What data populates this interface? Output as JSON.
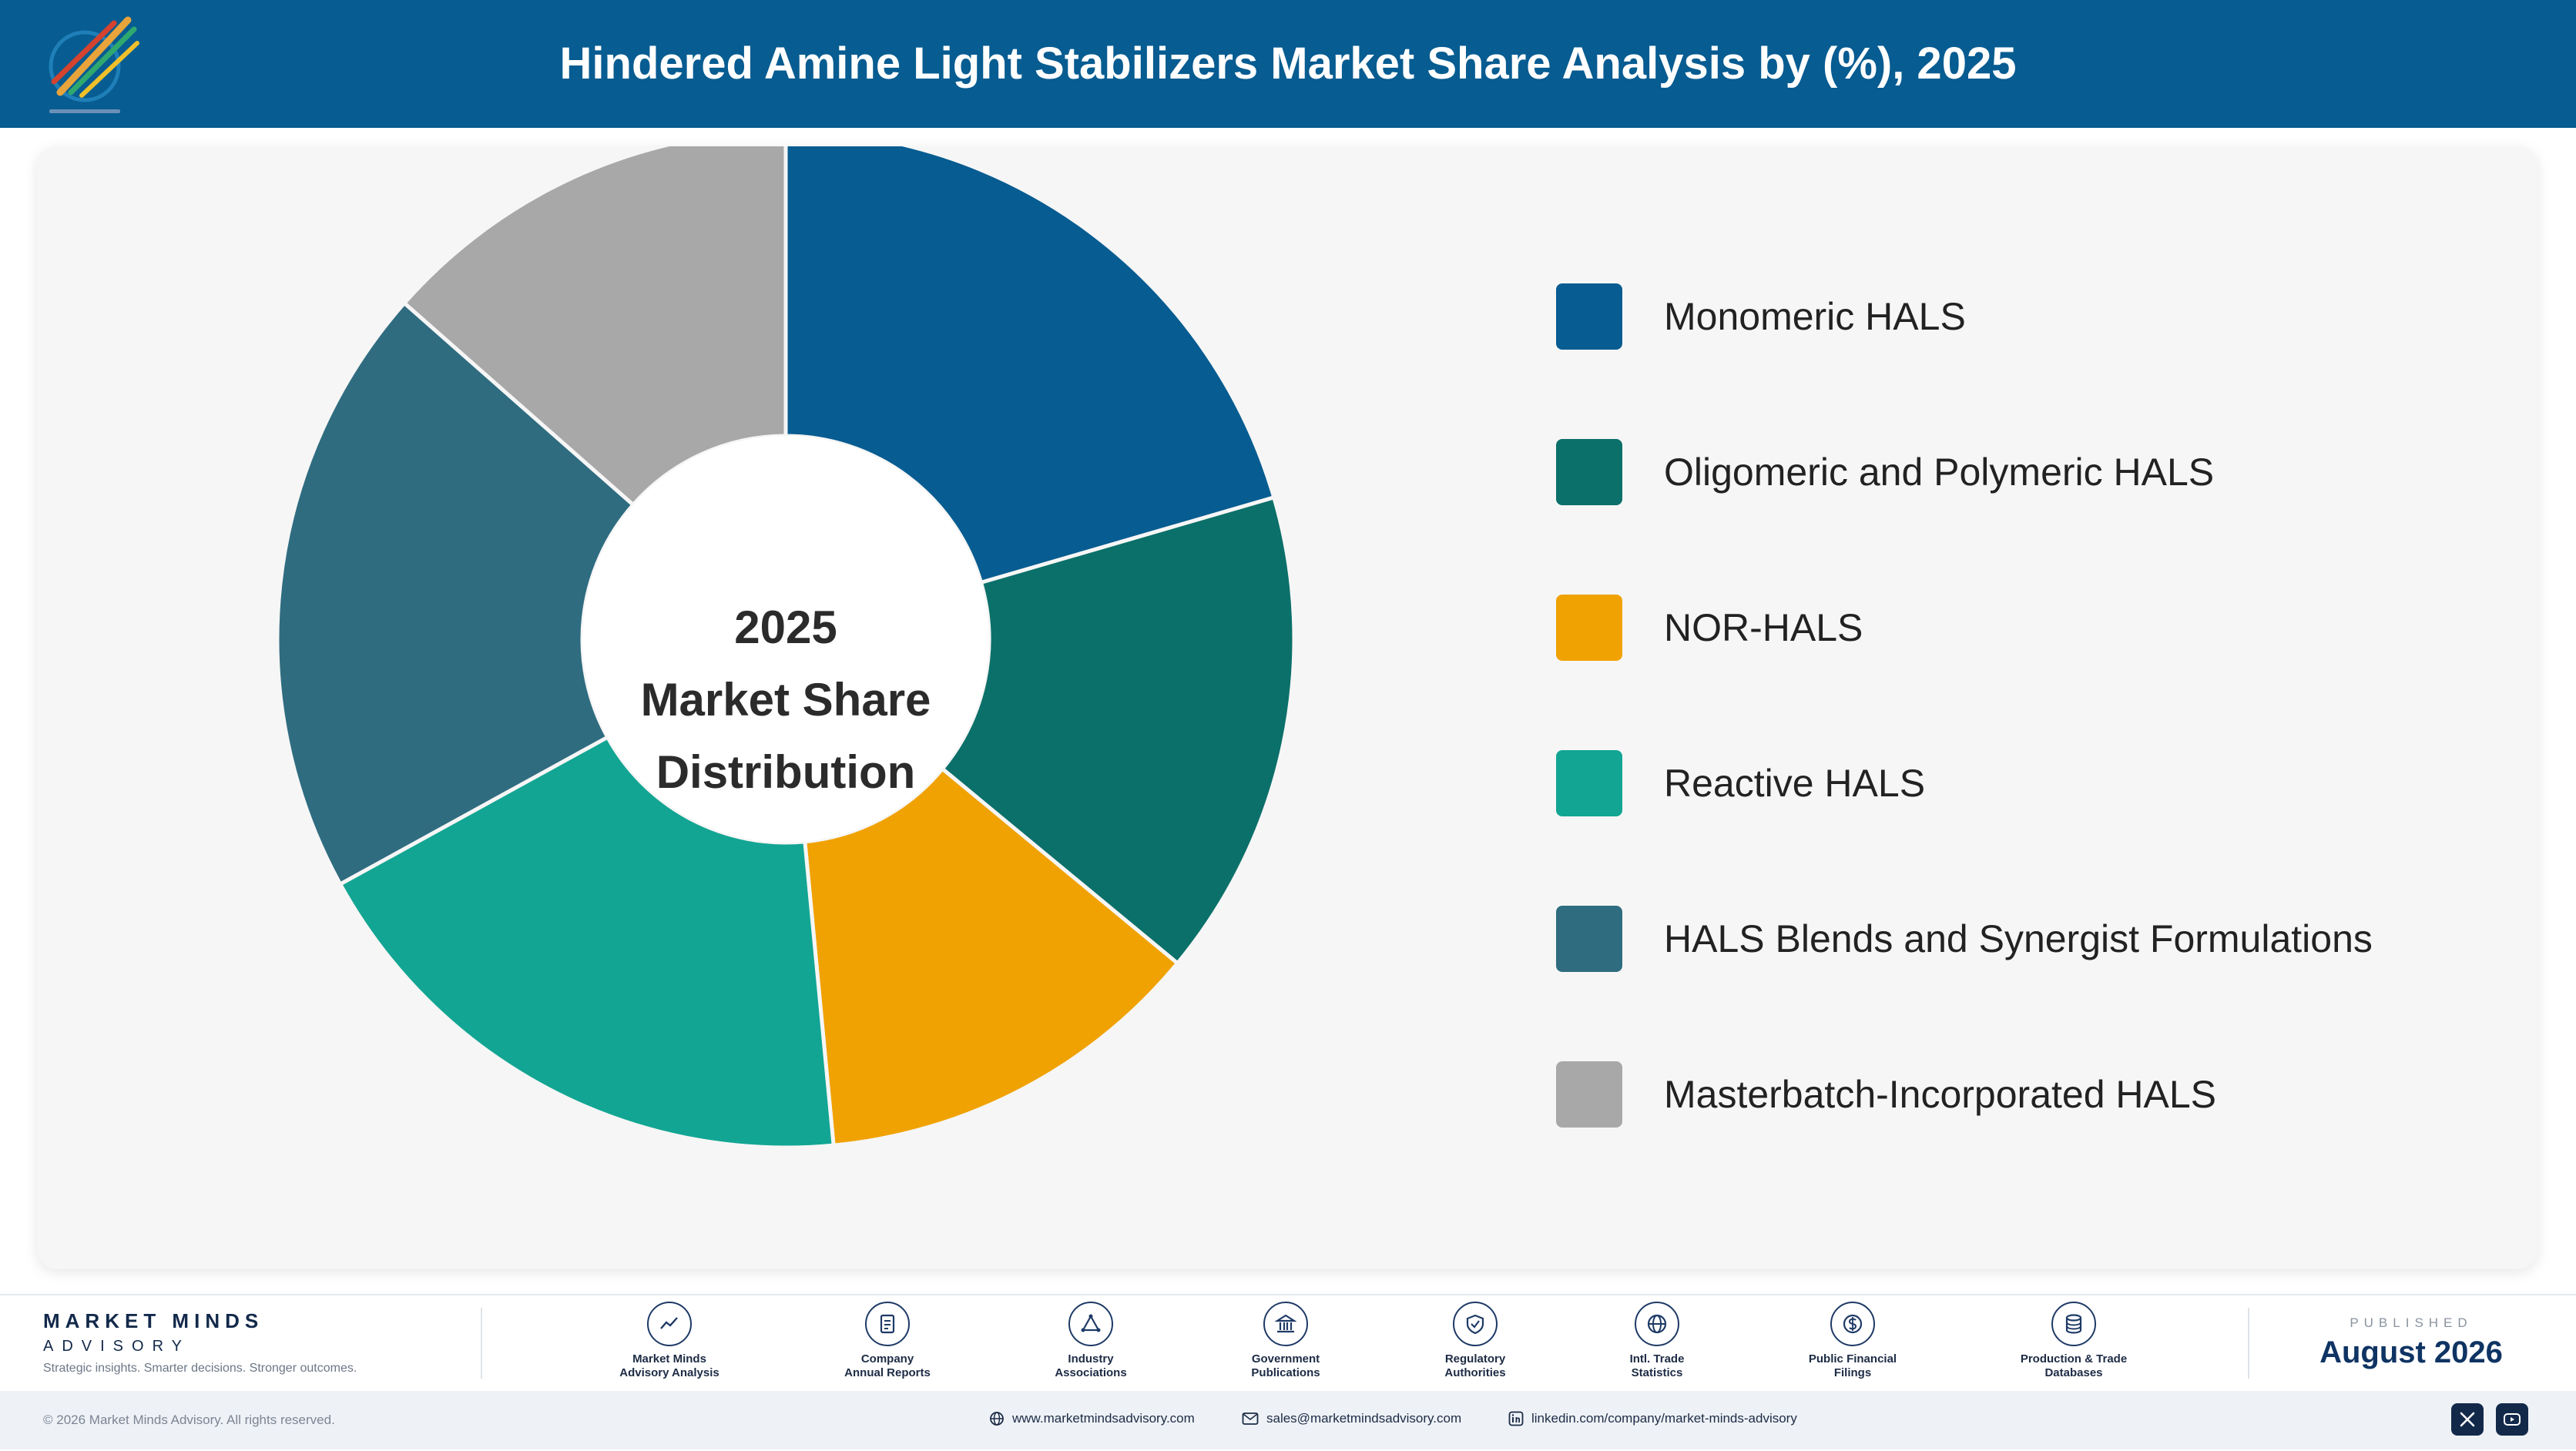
{
  "header": {
    "title": "Hindered Amine Light Stabilizers Market Share Analysis by (%), 2025"
  },
  "center_label": {
    "line1": "2025",
    "line2": "Market Share",
    "line3": "Distribution"
  },
  "chart_data": {
    "type": "pie",
    "title": "Hindered Amine Light Stabilizers Market Share Analysis by (%), 2025",
    "donut": true,
    "start_angle": "top, clockwise",
    "legend_position": "right",
    "categories": [
      "Monomeric HALS",
      "Oligomeric and Polymeric HALS",
      "NOR-HALS",
      "Reactive HALS",
      "HALS Blends and Synergist Formulations",
      "Masterbatch-Incorporated HALS"
    ],
    "values": [
      20.5,
      15.5,
      12.5,
      18.5,
      19.5,
      13.5
    ],
    "colors": [
      "#075c91",
      "#0b7069",
      "#f0a202",
      "#12a593",
      "#2f6c80",
      "#a8a8a8"
    ]
  },
  "footer": {
    "brand_name": "MARKET MINDS",
    "brand_sub": "ADVISORY",
    "tagline": "Strategic insights. Smarter decisions. Stronger outcomes.",
    "sources": [
      {
        "label": "Market Minds\nAdvisory Analysis",
        "icon": "trend-line-icon"
      },
      {
        "label": "Company\nAnnual Reports",
        "icon": "document-icon"
      },
      {
        "label": "Industry\nAssociations",
        "icon": "network-icon"
      },
      {
        "label": "Government\nPublications",
        "icon": "building-icon"
      },
      {
        "label": "Regulatory\nAuthorities",
        "icon": "shield-check-icon"
      },
      {
        "label": "Intl. Trade\nStatistics",
        "icon": "globe-icon"
      },
      {
        "label": "Public Financial\nFilings",
        "icon": "dollar-coin-icon"
      },
      {
        "label": "Production & Trade\nDatabases",
        "icon": "database-icon"
      }
    ],
    "published_label": "PUBLISHED",
    "published_date": "August 2026",
    "copyright": "© 2026 Market Minds Advisory. All rights reserved.",
    "website": "www.marketmindsadvisory.com",
    "email": "sales@marketmindsadvisory.com",
    "linkedin": "linkedin.com/company/market-minds-advisory",
    "social": [
      "x-icon",
      "youtube-icon"
    ]
  }
}
